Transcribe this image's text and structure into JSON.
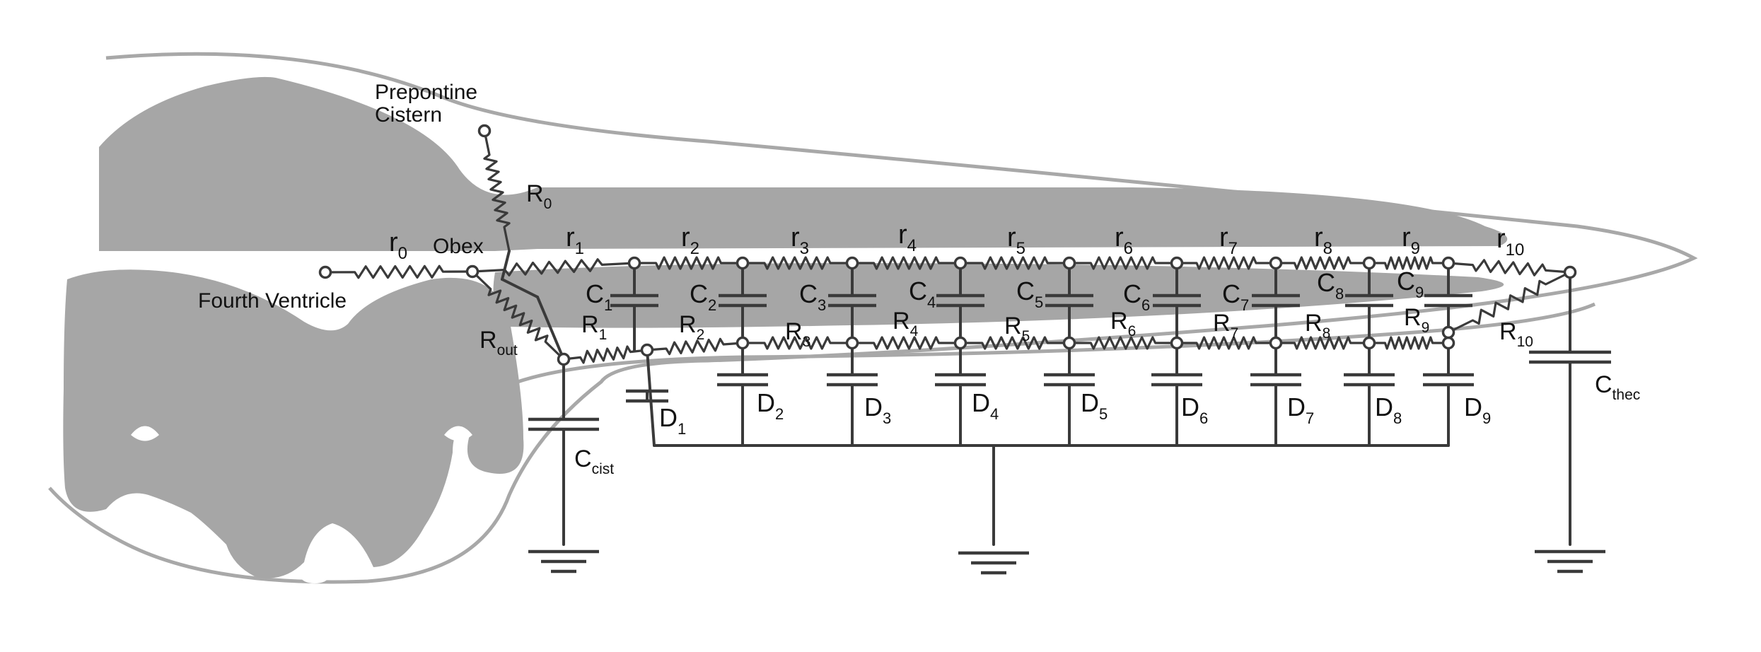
{
  "labels": {
    "prepontine": [
      "Prepontine",
      "Cistern"
    ],
    "obex": "Obex",
    "fourth_ventricle": "Fourth Ventricle"
  },
  "upper_resistors": [
    {
      "base": "r",
      "sub": "0"
    },
    {
      "base": "r",
      "sub": "1"
    },
    {
      "base": "r",
      "sub": "2"
    },
    {
      "base": "r",
      "sub": "3"
    },
    {
      "base": "r",
      "sub": "4"
    },
    {
      "base": "r",
      "sub": "5"
    },
    {
      "base": "r",
      "sub": "6"
    },
    {
      "base": "r",
      "sub": "7"
    },
    {
      "base": "r",
      "sub": "8"
    },
    {
      "base": "r",
      "sub": "9"
    },
    {
      "base": "r",
      "sub": "10"
    }
  ],
  "lower_resistors": [
    {
      "base": "R",
      "sub": "1"
    },
    {
      "base": "R",
      "sub": "2"
    },
    {
      "base": "R",
      "sub": "3"
    },
    {
      "base": "R",
      "sub": "4"
    },
    {
      "base": "R",
      "sub": "5"
    },
    {
      "base": "R",
      "sub": "6"
    },
    {
      "base": "R",
      "sub": "7"
    },
    {
      "base": "R",
      "sub": "8"
    },
    {
      "base": "R",
      "sub": "9"
    },
    {
      "base": "R",
      "sub": "10"
    }
  ],
  "link_resistors": [
    {
      "base": "R",
      "sub": "0"
    },
    {
      "base": "R",
      "sub": "out"
    }
  ],
  "c_capacitors": [
    {
      "base": "C",
      "sub": "1"
    },
    {
      "base": "C",
      "sub": "2"
    },
    {
      "base": "C",
      "sub": "3"
    },
    {
      "base": "C",
      "sub": "4"
    },
    {
      "base": "C",
      "sub": "5"
    },
    {
      "base": "C",
      "sub": "6"
    },
    {
      "base": "C",
      "sub": "7"
    },
    {
      "base": "C",
      "sub": "8"
    },
    {
      "base": "C",
      "sub": "9"
    }
  ],
  "d_capacitors": [
    {
      "base": "D",
      "sub": "1"
    },
    {
      "base": "D",
      "sub": "2"
    },
    {
      "base": "D",
      "sub": "3"
    },
    {
      "base": "D",
      "sub": "4"
    },
    {
      "base": "D",
      "sub": "5"
    },
    {
      "base": "D",
      "sub": "6"
    },
    {
      "base": "D",
      "sub": "7"
    },
    {
      "base": "D",
      "sub": "8"
    },
    {
      "base": "D",
      "sub": "9"
    }
  ],
  "end_capacitors": [
    {
      "base": "C",
      "sub": "cist"
    },
    {
      "base": "C",
      "sub": "thec"
    }
  ],
  "colors": {
    "tissue": "#a6a6a6",
    "outline": "#a8a8a8",
    "circuit": "#3a3a3a",
    "background": "#ffffff"
  }
}
